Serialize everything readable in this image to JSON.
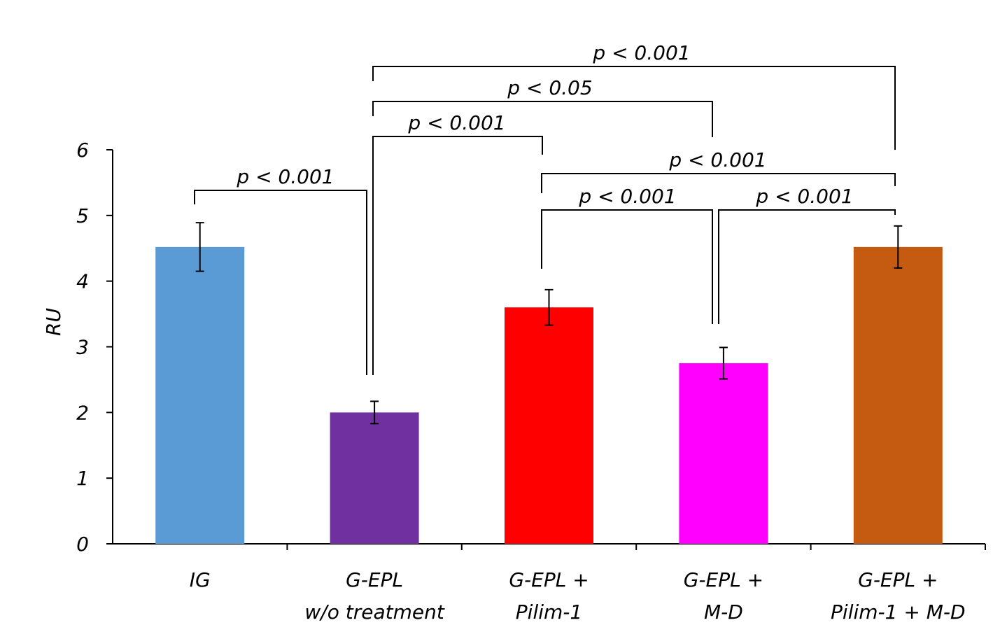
{
  "chart_data": {
    "type": "bar",
    "ylabel": "RU",
    "ylim": [
      0,
      6
    ],
    "yticks": [
      "0",
      "1",
      "2",
      "3",
      "4",
      "5",
      "6"
    ],
    "categories": [
      [
        "IG"
      ],
      [
        "G-EPL",
        "w/o treatment"
      ],
      [
        "G-EPL +",
        "Pilim-1"
      ],
      [
        "G-EPL +",
        "M-D"
      ],
      [
        "G-EPL +",
        "Pilim-1 + M-D"
      ]
    ],
    "values": [
      4.52,
      2.0,
      3.6,
      2.75,
      4.52
    ],
    "errors": [
      0.37,
      0.17,
      0.27,
      0.24,
      0.32
    ],
    "colors": [
      "#5b9bd5",
      "#7030a0",
      "#ff0000",
      "#ff00ff",
      "#c55a11"
    ],
    "significance": [
      {
        "from": 0,
        "to": 1,
        "label": "p < 0.001"
      },
      {
        "from": 1,
        "to": 2,
        "label": "p < 0.001"
      },
      {
        "from": 1,
        "to": 3,
        "label": "p < 0.05"
      },
      {
        "from": 1,
        "to": 4,
        "label": "p < 0.001"
      },
      {
        "from": 2,
        "to": 3,
        "label": "p < 0.001"
      },
      {
        "from": 2,
        "to": 4,
        "label": "p < 0.001"
      },
      {
        "from": 3,
        "to": 4,
        "label": "p < 0.001"
      }
    ]
  }
}
